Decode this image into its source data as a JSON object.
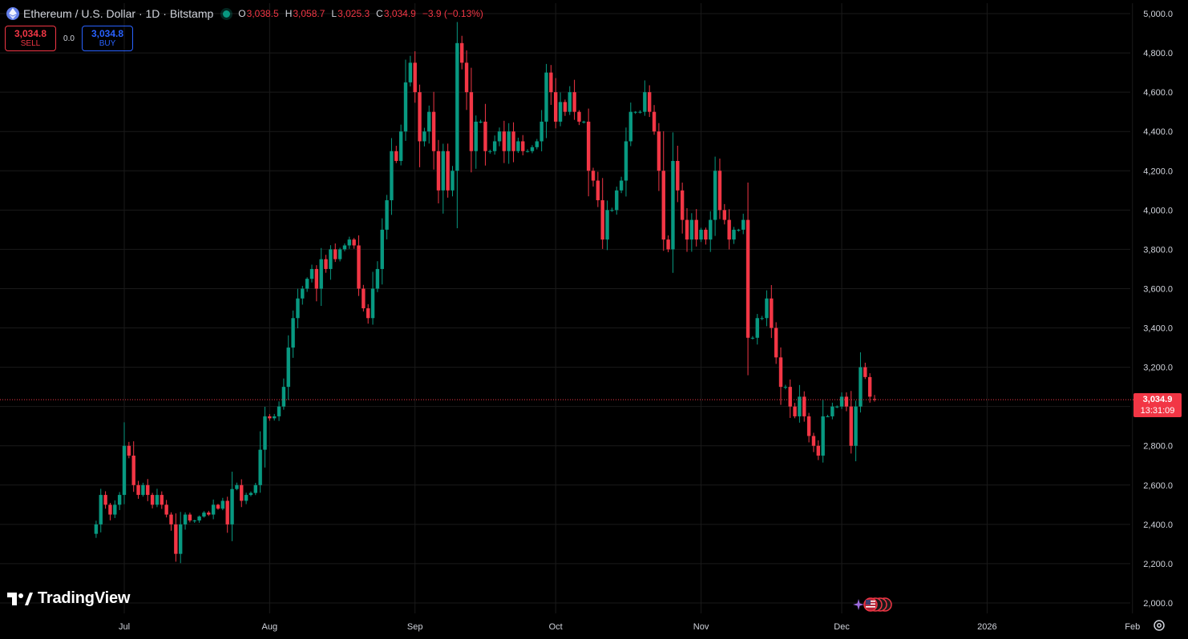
{
  "header": {
    "symbol_title": "Ethereum / U.S. Dollar · 1D · Bitstamp",
    "ohlc": {
      "o_key": "O",
      "o": "3,038.5",
      "h_key": "H",
      "h": "3,058.7",
      "l_key": "L",
      "l": "3,025.3",
      "c_key": "C",
      "c": "3,034.9",
      "change": "−3.9 (−0.13%)"
    }
  },
  "trade": {
    "sell_price": "3,034.8",
    "sell_label": "SELL",
    "spread": "0.0",
    "buy_price": "3,034.8",
    "buy_label": "BUY"
  },
  "brand": {
    "logo_text": "TradingView"
  },
  "current_price": {
    "value": "3,034.9",
    "countdown": "13:31:09"
  },
  "colors": {
    "up": "#089981",
    "down": "#f23645",
    "background": "#000000",
    "grid": "#1a1a1a",
    "axis_text": "#d1d4dc",
    "accent_blue": "#2962ff"
  },
  "icons": {
    "symbol": "ethereum-icon",
    "settings": "gear-icon",
    "events": "us-flag-icon"
  },
  "chart_data": {
    "type": "candlestick",
    "title": "Ethereum / U.S. Dollar · 1D · Bitstamp",
    "ylim": [
      2000,
      5000
    ],
    "y_ticks": [
      2000,
      2200,
      2400,
      2600,
      2800,
      3000,
      3200,
      3400,
      3600,
      3800,
      4000,
      4200,
      4400,
      4600,
      4800,
      5000
    ],
    "y_tick_labels": [
      "2,000.0",
      "2,200.0",
      "2,400.0",
      "2,600.0",
      "2,800.0",
      "3,000.0",
      "3,200.0",
      "3,400.0",
      "3,600.0",
      "3,800.0",
      "4,000.0",
      "4,200.0",
      "4,400.0",
      "4,600.0",
      "4,800.0",
      "5,000.0"
    ],
    "x_ticks": [
      {
        "label": "Jul",
        "date": "2025-07-01"
      },
      {
        "label": "Aug",
        "date": "2025-08-01"
      },
      {
        "label": "Sep",
        "date": "2025-09-01"
      },
      {
        "label": "Oct",
        "date": "2025-10-01"
      },
      {
        "label": "Nov",
        "date": "2025-11-01"
      },
      {
        "label": "Dec",
        "date": "2025-12-01"
      },
      {
        "label": "2026",
        "date": "2026-01-01"
      },
      {
        "label": "Feb",
        "date": "2026-02-01"
      }
    ],
    "last_price": 3034.9,
    "grid": true,
    "closes": [
      2400,
      2550,
      2500,
      2450,
      2500,
      2550,
      2800,
      2750,
      2600,
      2550,
      2600,
      2550,
      2500,
      2550,
      2500,
      2450,
      2400,
      2250,
      2400,
      2450,
      2420,
      2420,
      2440,
      2460,
      2450,
      2500,
      2480,
      2520,
      2400,
      2580,
      2600,
      2520,
      2550,
      2560,
      2600,
      2780,
      2950,
      2940,
      2950,
      3000,
      3100,
      3300,
      3450,
      3550,
      3600,
      3650,
      3700,
      3600,
      3750,
      3700,
      3800,
      3750,
      3800,
      3820,
      3850,
      3820,
      3600,
      3500,
      3450,
      3600,
      3700,
      3900,
      4050,
      4300,
      4250,
      4400,
      4650,
      4750,
      4600,
      4350,
      4400,
      4500,
      4300,
      4100,
      4300,
      4100,
      4200,
      4850,
      4750,
      4600,
      4300,
      4450,
      4450,
      4300,
      4300,
      4350,
      4400,
      4300,
      4400,
      4300,
      4350,
      4300,
      4300,
      4320,
      4350,
      4450,
      4700,
      4600,
      4450,
      4550,
      4500,
      4600,
      4500,
      4450,
      4450,
      4200,
      4150,
      4050,
      3850,
      4000,
      4000,
      4100,
      4150,
      4350,
      4500,
      4500,
      4500,
      4600,
      4500,
      4400,
      4200,
      3850,
      3800,
      4250,
      4100,
      3950,
      3850,
      3950,
      3850,
      3900,
      3850,
      3950,
      4200,
      4000,
      3950,
      3850,
      3900,
      3900,
      3950,
      3350,
      3350,
      3450,
      3450,
      3550,
      3400,
      3250,
      3100,
      3100,
      3000,
      2950,
      3050,
      2950,
      2850,
      2800,
      2750,
      2950,
      2950,
      3000,
      3000,
      3050,
      3000,
      2800,
      3000,
      3200,
      3150,
      3050,
      3035
    ]
  }
}
